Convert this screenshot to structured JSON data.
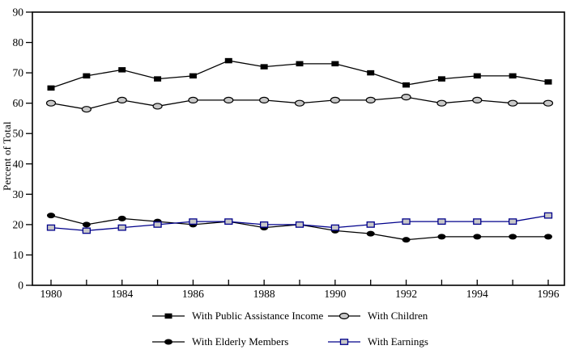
{
  "chart_data": {
    "type": "line",
    "title": "",
    "xlabel": "",
    "ylabel": "Percent of Total",
    "ylim": [
      0,
      90
    ],
    "yticks": [
      0,
      10,
      20,
      30,
      40,
      50,
      60,
      70,
      80,
      90
    ],
    "x": [
      1980,
      1982,
      1984,
      1985,
      1986,
      1987,
      1988,
      1989,
      1990,
      1991,
      1992,
      1993,
      1994,
      1995,
      1996
    ],
    "xticks": [
      {
        "i": 0,
        "label": "1980"
      },
      {
        "i": 2,
        "label": "1984"
      },
      {
        "i": 4,
        "label": "1986"
      },
      {
        "i": 6,
        "label": "1988"
      },
      {
        "i": 8,
        "label": "1990"
      },
      {
        "i": 10,
        "label": "1992"
      },
      {
        "i": 12,
        "label": "1994"
      },
      {
        "i": 14,
        "label": "1996"
      }
    ],
    "grid": false,
    "legend_position": "below",
    "colors": {
      "black": "#000000",
      "navy": "#00008b",
      "marker_fill": "#c8c8c8"
    },
    "series": [
      {
        "name": "With Public Assistance Income",
        "marker": "filled-square",
        "color": "#000000",
        "marker_fill": "#000000",
        "values": [
          65,
          69,
          71,
          68,
          69,
          74,
          72,
          73,
          73,
          70,
          66,
          68,
          69,
          69,
          67
        ]
      },
      {
        "name": "With Children",
        "marker": "open-circle",
        "color": "#000000",
        "marker_fill": "#c8c8c8",
        "values": [
          60,
          58,
          61,
          59,
          61,
          61,
          61,
          60,
          61,
          61,
          62,
          60,
          61,
          60,
          60
        ]
      },
      {
        "name": "With Elderly Members",
        "marker": "filled-circle",
        "color": "#000000",
        "marker_fill": "#000000",
        "values": [
          23,
          20,
          22,
          21,
          20,
          21,
          19,
          20,
          18,
          17,
          15,
          16,
          16,
          16,
          16
        ]
      },
      {
        "name": "With Earnings",
        "marker": "open-square",
        "color": "#00008b",
        "marker_fill": "#c8c8c8",
        "values": [
          19,
          18,
          19,
          20,
          21,
          21,
          20,
          20,
          19,
          20,
          21,
          21,
          21,
          21,
          23
        ]
      }
    ]
  }
}
